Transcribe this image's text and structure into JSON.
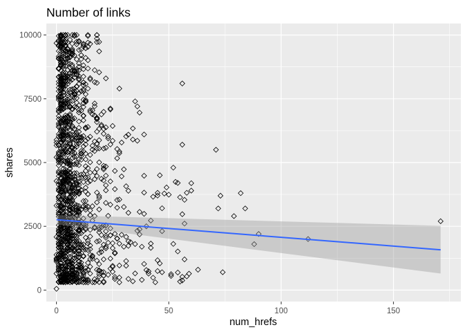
{
  "chart_data": {
    "type": "scatter",
    "title": "Number of links",
    "xlabel": "num_hrefs",
    "ylabel": "shares",
    "xlim": [
      -4.5,
      180
    ],
    "ylim": [
      -450,
      10450
    ],
    "x_ticks": [
      0,
      50,
      100,
      150
    ],
    "y_ticks": [
      0,
      2500,
      5000,
      7500,
      10000
    ],
    "x_tick_labels": [
      "0",
      "50",
      "100",
      "150"
    ],
    "y_tick_labels": [
      "0",
      "2500",
      "5000",
      "7500",
      "10000"
    ],
    "grid": true,
    "panel_color": "#ebebeb",
    "grid_color": "#ffffff",
    "marker": "open-diamond",
    "point_color": "#000000",
    "trend_color": "#3366ff",
    "band_color": "#999999",
    "trend": {
      "method": "linear",
      "x": [
        0,
        171
      ],
      "y": [
        2760,
        1580
      ],
      "ci_lower": [
        2580,
        650
      ],
      "ci_upper": [
        2940,
        2520
      ]
    },
    "notable_points": [
      {
        "x": 0,
        "y": 50
      },
      {
        "x": 2,
        "y": 10000
      },
      {
        "x": 18,
        "y": 10000
      },
      {
        "x": 22,
        "y": 8300
      },
      {
        "x": 28,
        "y": 7900
      },
      {
        "x": 35,
        "y": 7400
      },
      {
        "x": 36,
        "y": 7200
      },
      {
        "x": 56,
        "y": 8100
      },
      {
        "x": 56,
        "y": 5700
      },
      {
        "x": 71,
        "y": 5500
      },
      {
        "x": 52,
        "y": 4800
      },
      {
        "x": 46,
        "y": 4500
      },
      {
        "x": 60,
        "y": 3900
      },
      {
        "x": 73,
        "y": 3700
      },
      {
        "x": 82,
        "y": 3800
      },
      {
        "x": 72,
        "y": 3200
      },
      {
        "x": 84,
        "y": 3200
      },
      {
        "x": 79,
        "y": 2900
      },
      {
        "x": 90,
        "y": 2200
      },
      {
        "x": 88,
        "y": 1800
      },
      {
        "x": 112,
        "y": 2000
      },
      {
        "x": 171,
        "y": 2700
      },
      {
        "x": 74,
        "y": 700
      },
      {
        "x": 63,
        "y": 800
      },
      {
        "x": 38,
        "y": 400
      },
      {
        "x": 47,
        "y": 700
      },
      {
        "x": 30,
        "y": 1700
      },
      {
        "x": 40,
        "y": 2500
      }
    ]
  }
}
